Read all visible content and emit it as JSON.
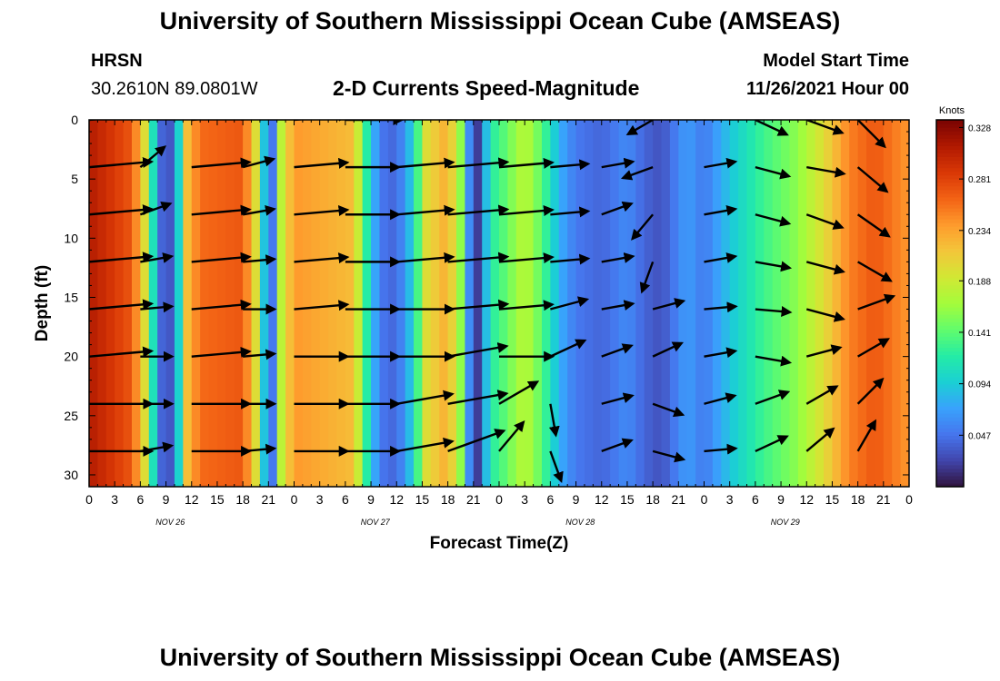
{
  "header": {
    "title": "University of Southern Mississippi Ocean Cube (AMSEAS)",
    "station": "HRSN",
    "coords": "30.2610N  89.0801W",
    "chart_title": "2-D Currents Speed-Magnitude",
    "start_label": "Model Start Time",
    "start_value": "11/26/2021 Hour 00"
  },
  "footer": {
    "title": "University of Southern Mississippi Ocean Cube (AMSEAS)"
  },
  "colors": {
    "scale": [
      "#30123b",
      "#4145ab",
      "#4675ed",
      "#39a2fc",
      "#1bcfd4",
      "#24eca6",
      "#61fc6c",
      "#a4fc3b",
      "#d1e834",
      "#f3c63a",
      "#fe9b2d",
      "#f36315",
      "#d93806",
      "#b11901",
      "#7a0402"
    ],
    "arrow": "#000000"
  },
  "chart_data": {
    "type": "heatmap",
    "title": "2-D Currents Speed-Magnitude",
    "xlabel": "Forecast Time(Z)",
    "ylabel": "Depth (ft)",
    "x_range": [
      0,
      96
    ],
    "ylim": [
      0,
      31
    ],
    "y_inverted": true,
    "x_ticks": [
      "0",
      "3",
      "6",
      "9",
      "12",
      "15",
      "18",
      "21",
      "0",
      "3",
      "6",
      "9",
      "12",
      "15",
      "18",
      "21",
      "0",
      "3",
      "6",
      "9",
      "12",
      "15",
      "18",
      "21",
      "0",
      "3",
      "6",
      "9",
      "12",
      "15",
      "18",
      "21",
      "0"
    ],
    "date_labels": [
      {
        "label": "NOV 26",
        "hour": 9.5
      },
      {
        "label": "NOV 27",
        "hour": 33.5
      },
      {
        "label": "NOV 28",
        "hour": 57.5
      },
      {
        "label": "NOV 29",
        "hour": 81.5
      }
    ],
    "y_ticks": [
      0,
      5,
      10,
      15,
      20,
      25,
      30
    ],
    "colorbar": {
      "units": "Knots",
      "min": 0.0,
      "max": 0.335,
      "ticks": [
        "0.328",
        "0.281",
        "0.234",
        "0.188",
        "0.141",
        "0.094",
        "0.047"
      ],
      "tick_values": [
        0.328,
        0.281,
        0.234,
        0.188,
        0.141,
        0.094,
        0.047
      ]
    },
    "speed_profile_by_hour": [
      {
        "hour": 0,
        "speed": 0.31
      },
      {
        "hour": 5,
        "speed": 0.27
      },
      {
        "hour": 6.5,
        "speed": 0.2
      },
      {
        "hour": 7.5,
        "speed": 0.11
      },
      {
        "hour": 8.5,
        "speed": 0.04
      },
      {
        "hour": 10,
        "speed": 0.03
      },
      {
        "hour": 10.8,
        "speed": 0.14
      },
      {
        "hour": 11.5,
        "speed": 0.22
      },
      {
        "hour": 13,
        "speed": 0.26
      },
      {
        "hour": 18,
        "speed": 0.27
      },
      {
        "hour": 19.5,
        "speed": 0.2
      },
      {
        "hour": 20.5,
        "speed": 0.09
      },
      {
        "hour": 21.5,
        "speed": 0.05
      },
      {
        "hour": 22.5,
        "speed": 0.18
      },
      {
        "hour": 24,
        "speed": 0.24
      },
      {
        "hour": 31,
        "speed": 0.22
      },
      {
        "hour": 32.5,
        "speed": 0.12
      },
      {
        "hour": 34,
        "speed": 0.05
      },
      {
        "hour": 36,
        "speed": 0.04
      },
      {
        "hour": 38,
        "speed": 0.1
      },
      {
        "hour": 39.5,
        "speed": 0.2
      },
      {
        "hour": 42,
        "speed": 0.23
      },
      {
        "hour": 43.5,
        "speed": 0.16
      },
      {
        "hour": 44.5,
        "speed": 0.06
      },
      {
        "hour": 45.5,
        "speed": 0.02
      },
      {
        "hour": 47,
        "speed": 0.12
      },
      {
        "hour": 48,
        "speed": 0.13
      },
      {
        "hour": 51,
        "speed": 0.18
      },
      {
        "hour": 53,
        "speed": 0.14
      },
      {
        "hour": 55,
        "speed": 0.08
      },
      {
        "hour": 57,
        "speed": 0.05
      },
      {
        "hour": 60,
        "speed": 0.04
      },
      {
        "hour": 63,
        "speed": 0.06
      },
      {
        "hour": 65,
        "speed": 0.04
      },
      {
        "hour": 67,
        "speed": 0.03
      },
      {
        "hour": 70,
        "speed": 0.07
      },
      {
        "hour": 72,
        "speed": 0.05
      },
      {
        "hour": 75,
        "speed": 0.09
      },
      {
        "hour": 79,
        "speed": 0.13
      },
      {
        "hour": 83,
        "speed": 0.16
      },
      {
        "hour": 86,
        "speed": 0.2
      },
      {
        "hour": 89,
        "speed": 0.25
      },
      {
        "hour": 92,
        "speed": 0.27
      },
      {
        "hour": 96,
        "speed": 0.24
      }
    ],
    "arrow_times": [
      0,
      6,
      12,
      18,
      24,
      30,
      36,
      42,
      48,
      54,
      60,
      66,
      72,
      78,
      84,
      90,
      96
    ],
    "arrow_depths_ft": [
      0,
      4,
      8,
      12,
      16,
      20,
      24,
      28
    ],
    "arrow_direction_deg": [
      [
        5,
        40,
        5,
        40,
        5,
        0,
        5,
        5,
        5,
        20,
        30,
        210,
        20,
        335,
        340,
        315,
        325
      ],
      [
        5,
        40,
        5,
        15,
        5,
        0,
        5,
        5,
        5,
        5,
        10,
        200,
        10,
        345,
        350,
        320,
        330
      ],
      [
        5,
        20,
        5,
        10,
        5,
        0,
        5,
        5,
        5,
        5,
        20,
        230,
        10,
        345,
        340,
        325,
        330
      ],
      [
        5,
        10,
        5,
        5,
        5,
        0,
        5,
        5,
        5,
        5,
        10,
        250,
        10,
        350,
        345,
        330,
        340
      ],
      [
        5,
        5,
        5,
        0,
        5,
        0,
        0,
        5,
        5,
        15,
        10,
        15,
        5,
        355,
        345,
        20,
        20
      ],
      [
        5,
        0,
        5,
        5,
        0,
        0,
        0,
        10,
        0,
        25,
        20,
        25,
        10,
        350,
        15,
        30,
        30
      ],
      [
        0,
        0,
        0,
        0,
        0,
        0,
        10,
        10,
        30,
        280,
        15,
        340,
        15,
        20,
        30,
        45,
        340
      ],
      [
        0,
        10,
        0,
        5,
        0,
        0,
        10,
        20,
        50,
        290,
        20,
        345,
        5,
        25,
        40,
        60,
        340
      ]
    ],
    "arrow_speed_kt": [
      [
        0.3,
        0.08,
        0.27,
        0.08,
        0.24,
        0.26,
        0.28,
        0.28,
        0.24,
        0.12,
        0.1,
        0.08,
        0.1,
        0.12,
        0.14,
        0.14,
        0.12
      ],
      [
        0.3,
        0.1,
        0.27,
        0.1,
        0.24,
        0.24,
        0.26,
        0.28,
        0.24,
        0.14,
        0.1,
        0.1,
        0.1,
        0.12,
        0.14,
        0.14,
        0.12
      ],
      [
        0.3,
        0.1,
        0.27,
        0.1,
        0.24,
        0.24,
        0.26,
        0.28,
        0.24,
        0.14,
        0.1,
        0.1,
        0.1,
        0.12,
        0.14,
        0.14,
        0.12
      ],
      [
        0.3,
        0.1,
        0.27,
        0.1,
        0.24,
        0.24,
        0.26,
        0.28,
        0.24,
        0.14,
        0.1,
        0.1,
        0.1,
        0.12,
        0.14,
        0.14,
        0.12
      ],
      [
        0.3,
        0.1,
        0.27,
        0.1,
        0.24,
        0.24,
        0.26,
        0.28,
        0.24,
        0.14,
        0.1,
        0.1,
        0.1,
        0.12,
        0.14,
        0.14,
        0.12
      ],
      [
        0.3,
        0.1,
        0.27,
        0.1,
        0.24,
        0.24,
        0.26,
        0.28,
        0.24,
        0.14,
        0.1,
        0.1,
        0.1,
        0.12,
        0.12,
        0.12,
        0.1
      ],
      [
        0.3,
        0.1,
        0.27,
        0.1,
        0.24,
        0.24,
        0.26,
        0.28,
        0.18,
        0.1,
        0.1,
        0.1,
        0.1,
        0.12,
        0.12,
        0.12,
        0.1
      ],
      [
        0.3,
        0.1,
        0.27,
        0.1,
        0.24,
        0.24,
        0.26,
        0.28,
        0.14,
        0.1,
        0.1,
        0.1,
        0.1,
        0.12,
        0.12,
        0.12,
        0.1
      ]
    ]
  }
}
